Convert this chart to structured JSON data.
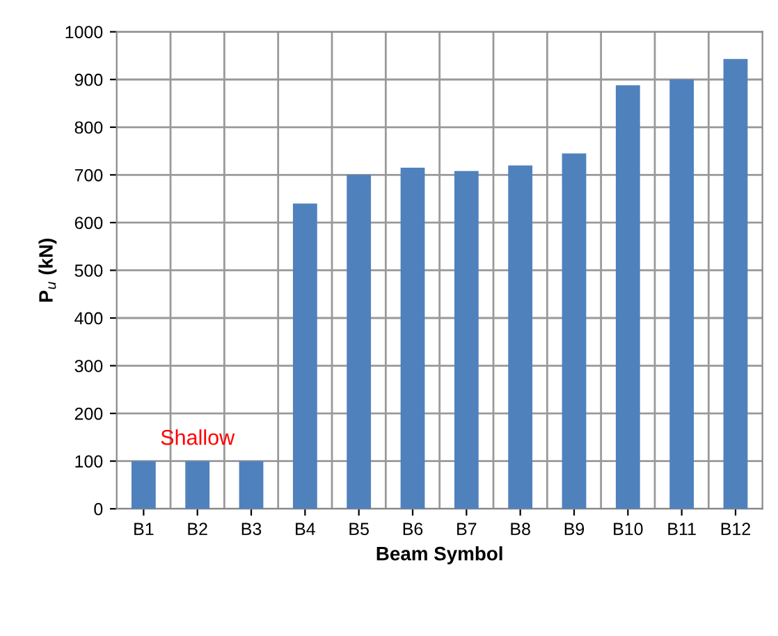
{
  "chart_data": {
    "type": "bar",
    "xlabel": "Beam Symbol",
    "ylabel": "P$_{u}$ (kN)",
    "categories": [
      "B1",
      "B2",
      "B3",
      "B4",
      "B5",
      "B6",
      "B7",
      "B8",
      "B9",
      "B10",
      "B11",
      "B12"
    ],
    "values": [
      100,
      100,
      100,
      640,
      700,
      715,
      708,
      720,
      745,
      888,
      900,
      943
    ],
    "color": "#4f81bd",
    "ylim": [
      0,
      1000
    ],
    "yticks": [
      0,
      100,
      200,
      300,
      400,
      500,
      600,
      700,
      800,
      900,
      1000
    ],
    "grid": true,
    "annotations": [
      "Shallow"
    ]
  }
}
